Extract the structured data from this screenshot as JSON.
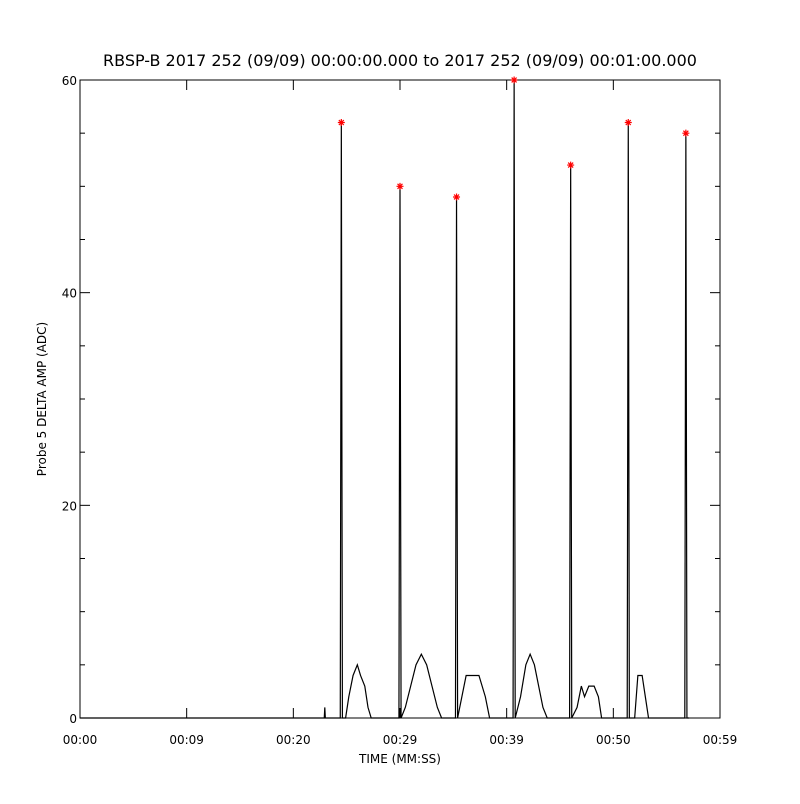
{
  "chart_data": {
    "type": "line",
    "title": "RBSP-B 2017 252 (09/09) 00:00:00.000 to 2017 252 (09/09) 00:01:00.000",
    "x_label": "TIME (MM:SS)",
    "y_label": "Probe 5 DELTA AMP (ADC)",
    "xlim": [
      0,
      60
    ],
    "xticks": [
      {
        "value": 0,
        "label": "00:00"
      },
      {
        "value": 10,
        "label": "00:09"
      },
      {
        "value": 20,
        "label": "00:20"
      },
      {
        "value": 30,
        "label": "00:29"
      },
      {
        "value": 40,
        "label": "00:39"
      },
      {
        "value": 50,
        "label": "00:50"
      },
      {
        "value": 60,
        "label": "00:59"
      }
    ],
    "ylim": [
      0,
      60
    ],
    "yticks": [
      0,
      20,
      40,
      60
    ],
    "yminorticks": [
      5,
      10,
      15,
      25,
      30,
      35,
      45,
      50,
      55
    ],
    "series": [
      {
        "color": "#000000",
        "marker": "none",
        "x": [
          0,
          22.9,
          22.95,
          23.0,
          24.4,
          24.5,
          24.6,
          24.9,
          25.2,
          25.6,
          26.0,
          26.3,
          26.7,
          27.0,
          27.3,
          29.9,
          30.0,
          30.1,
          30.5,
          31.0,
          31.5,
          32.0,
          32.5,
          33.0,
          33.5,
          33.9,
          35.2,
          35.3,
          35.4,
          35.8,
          36.2,
          36.8,
          37.4,
          38.0,
          38.4,
          40.6,
          40.7,
          40.8,
          41.3,
          41.8,
          42.2,
          42.6,
          43.0,
          43.4,
          43.8,
          45.9,
          46.0,
          46.1,
          46.6,
          47.0,
          47.3,
          47.7,
          48.2,
          48.6,
          48.9,
          51.3,
          51.4,
          51.5,
          52.0,
          52.3,
          52.7,
          53.0,
          53.3,
          56.7,
          56.8,
          56.9,
          57.1
        ],
        "values": [
          0,
          0,
          1,
          0,
          0,
          56,
          0,
          0,
          2,
          4,
          5,
          4,
          3,
          1,
          0,
          0,
          50,
          0,
          1,
          3,
          5,
          6,
          5,
          3,
          1,
          0,
          0,
          49,
          0,
          2,
          4,
          4,
          4,
          2,
          0,
          0,
          60,
          0,
          2,
          5,
          6,
          5,
          3,
          1,
          0,
          0,
          52,
          0,
          1,
          3,
          2,
          3,
          3,
          2,
          0,
          0,
          56,
          0,
          0,
          4,
          4,
          2,
          0,
          0,
          55,
          0,
          0
        ]
      },
      {
        "color": "#ff0000",
        "marker": "star",
        "x": [
          24.5,
          30.0,
          35.3,
          40.7,
          46.0,
          51.4,
          56.8
        ],
        "values": [
          56,
          50,
          49,
          60,
          52,
          56,
          55
        ]
      }
    ]
  }
}
